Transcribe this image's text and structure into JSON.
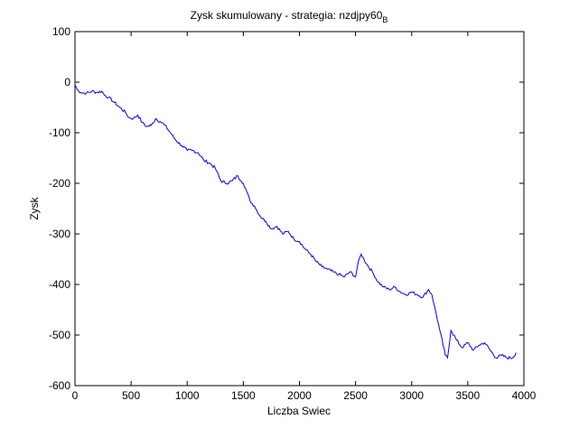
{
  "chart_data": {
    "type": "line",
    "title": "Zysk skumulowany - strategia: nzdjpy60",
    "title_subscript": "B",
    "xlabel": "Liczba Swiec",
    "ylabel": "Zysk",
    "xlim": [
      0,
      4000
    ],
    "ylim": [
      -600,
      100
    ],
    "xticks": [
      0,
      500,
      1000,
      1500,
      2000,
      2500,
      3000,
      3500,
      4000
    ],
    "yticks": [
      -600,
      -500,
      -400,
      -300,
      -200,
      -100,
      0,
      100
    ],
    "xtick_labels": [
      "0",
      "500",
      "1000",
      "1500",
      "2000",
      "2500",
      "3000",
      "3500",
      "4000"
    ],
    "ytick_labels": [
      "-600",
      "-500",
      "-400",
      "-300",
      "-200",
      "-100",
      "0",
      "100"
    ],
    "grid": false,
    "line_color": "#0000ff",
    "series": [
      {
        "x": [
          0,
          20,
          50,
          100,
          150,
          200,
          240,
          260,
          300,
          350,
          400,
          450,
          480,
          520,
          560,
          600,
          640,
          680,
          720,
          760,
          800,
          850,
          900,
          950,
          1000,
          1050,
          1100,
          1150,
          1200,
          1250,
          1300,
          1350,
          1400,
          1450,
          1480,
          1500,
          1520,
          1560,
          1600,
          1650,
          1700,
          1750,
          1800,
          1850,
          1900,
          1950,
          2000,
          2050,
          2100,
          2150,
          2200,
          2250,
          2300,
          2350,
          2400,
          2450,
          2500,
          2520,
          2550,
          2600,
          2650,
          2700,
          2750,
          2800,
          2850,
          2900,
          2950,
          3000,
          3050,
          3100,
          3150,
          3180,
          3200,
          3250,
          3300,
          3320,
          3350,
          3400,
          3450,
          3500,
          3550,
          3600,
          3650,
          3700,
          3750,
          3800,
          3850,
          3900,
          3930
        ],
        "y": [
          -5,
          -15,
          -20,
          -22,
          -18,
          -20,
          -18,
          -25,
          -30,
          -40,
          -50,
          -60,
          -70,
          -72,
          -65,
          -80,
          -88,
          -85,
          -72,
          -78,
          -85,
          -100,
          -115,
          -125,
          -135,
          -135,
          -140,
          -155,
          -160,
          -170,
          -195,
          -200,
          -195,
          -185,
          -195,
          -200,
          -210,
          -235,
          -245,
          -265,
          -275,
          -290,
          -285,
          -300,
          -295,
          -310,
          -315,
          -330,
          -340,
          -355,
          -365,
          -370,
          -375,
          -380,
          -385,
          -375,
          -385,
          -360,
          -340,
          -360,
          -375,
          -395,
          -405,
          -410,
          -405,
          -415,
          -420,
          -415,
          -420,
          -425,
          -410,
          -420,
          -440,
          -490,
          -540,
          -545,
          -490,
          -510,
          -525,
          -515,
          -530,
          -520,
          -515,
          -530,
          -545,
          -540,
          -545,
          -545,
          -535
        ]
      }
    ]
  }
}
